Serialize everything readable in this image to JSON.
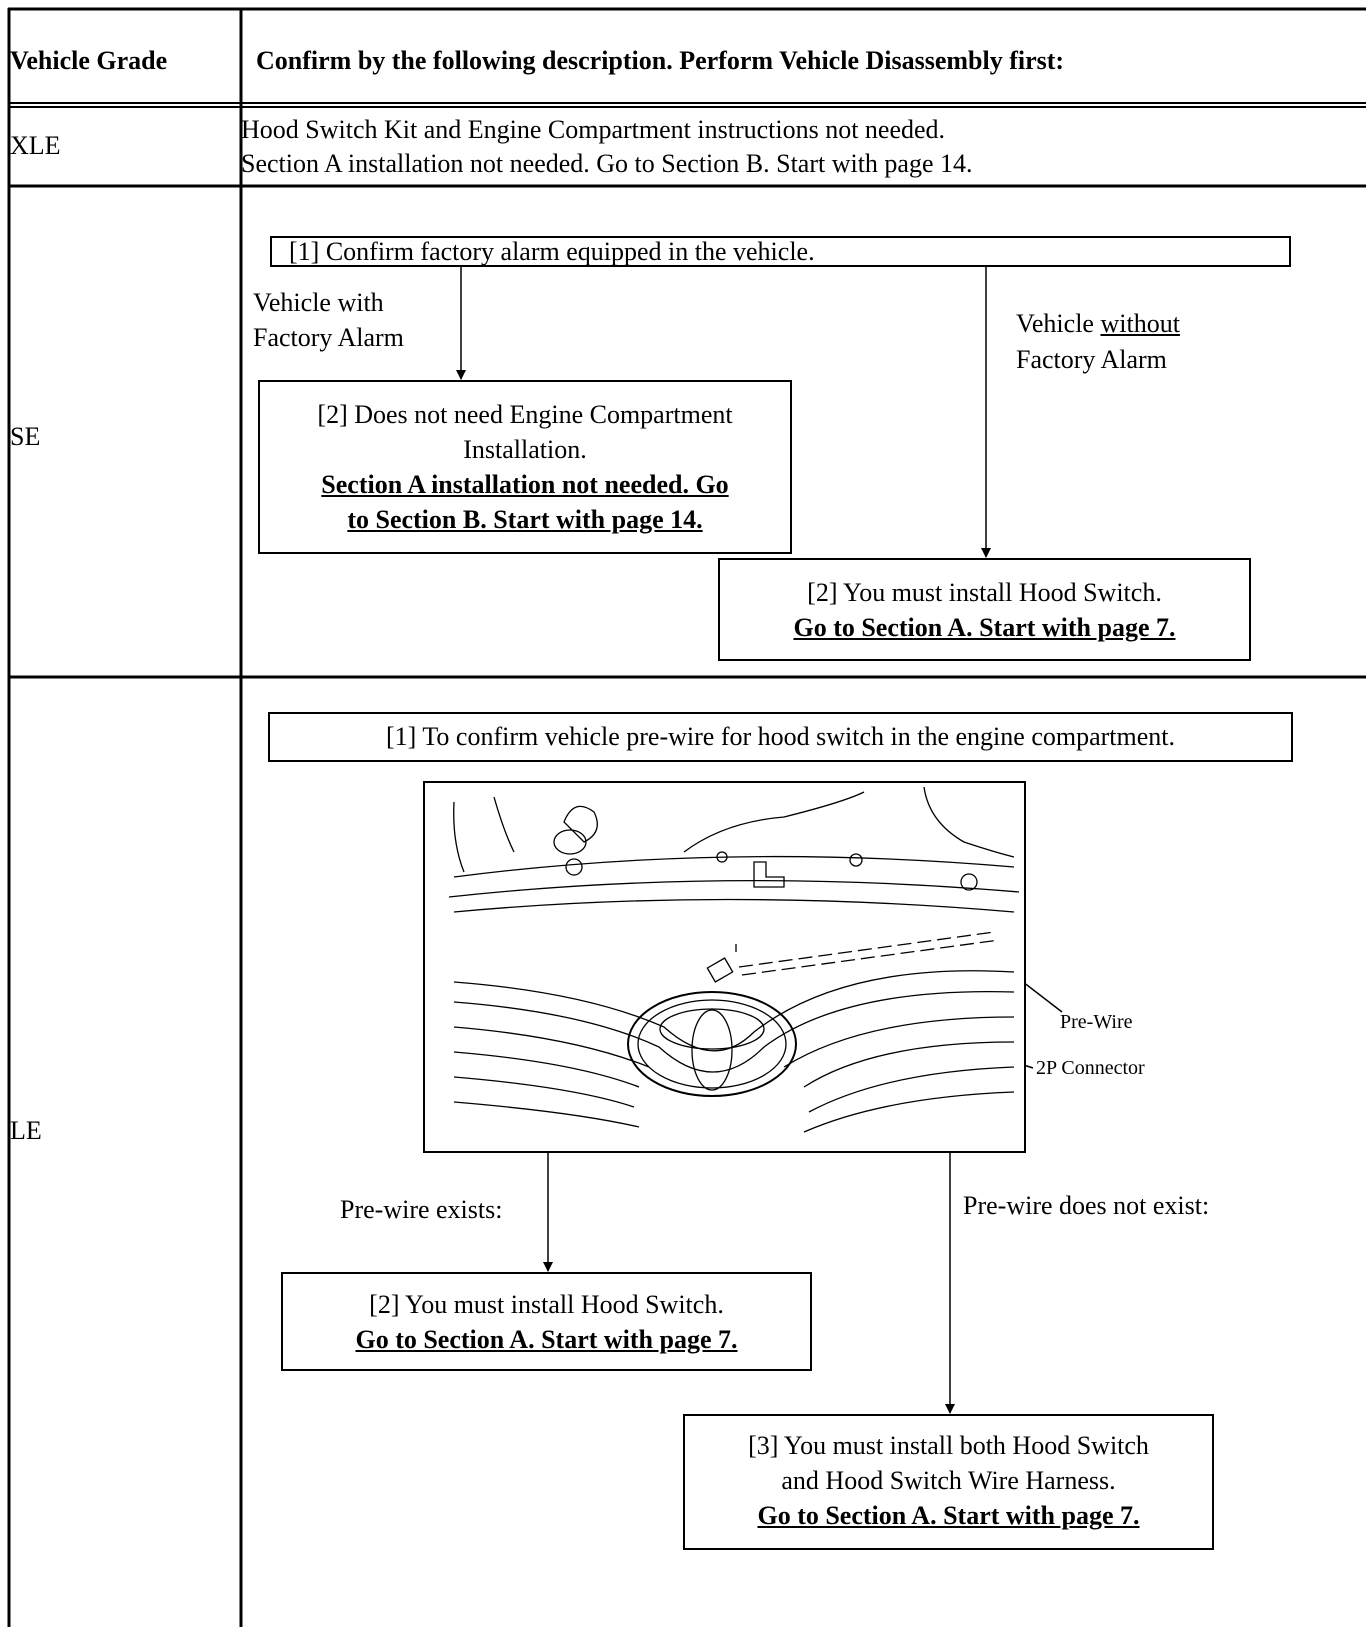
{
  "table": {
    "header": {
      "grade": "Vehicle Grade",
      "description": "Confirm by the following description. Perform Vehicle Disassembly first:"
    },
    "rows": [
      {
        "grade": "XLE",
        "lines": [
          "Hood Switch Kit and Engine Compartment instructions not needed.",
          "Section A installation not needed. Go to Section B. Start with page 14."
        ]
      },
      {
        "grade": "SE",
        "question": "[1] Confirm factory alarm equipped in the vehicle.",
        "branches": [
          {
            "label": [
              "Vehicle with",
              "Factory Alarm"
            ],
            "result": [
              "[2] Does not need Engine Compartment",
              "Installation.",
              "Section A installation not needed. Go",
              "to Section B. Start with page 14."
            ]
          },
          {
            "label": [
              "Vehicle",
              "without",
              "Factory Alarm"
            ],
            "result": [
              "[2] You must install Hood Switch.",
              "Go to Section A. Start with page 7."
            ]
          }
        ]
      },
      {
        "grade": "LE",
        "question": "[1] To confirm vehicle pre-wire for hood switch in the engine compartment.",
        "figure_labels": [
          "Pre-Wire",
          "2P Connector"
        ],
        "branches": [
          {
            "label": "Pre-wire exists:",
            "result": [
              "[2] You must install Hood Switch.",
              "Go to Section A. Start with page 7."
            ]
          },
          {
            "label": "Pre-wire does not exist:",
            "result": [
              "[3] You must install both Hood Switch",
              "and Hood Switch Wire Harness.",
              "Go to Section A. Start with page 7."
            ]
          }
        ]
      }
    ]
  }
}
